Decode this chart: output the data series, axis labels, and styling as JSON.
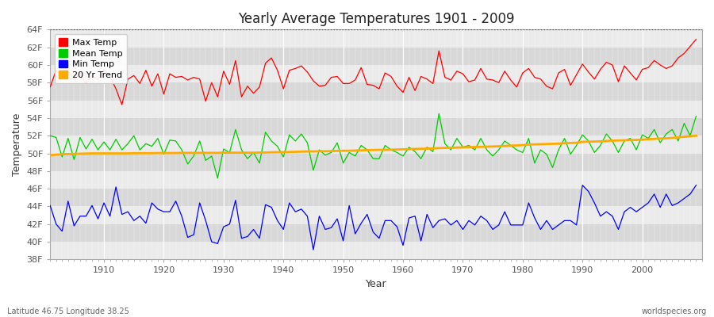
{
  "title": "Yearly Average Temperatures 1901 - 2009",
  "xlabel": "Year",
  "ylabel": "Temperature",
  "lat_lon_label": "Latitude 46.75 Longitude 38.25",
  "source_label": "worldspecies.org",
  "years": [
    1901,
    1902,
    1903,
    1904,
    1905,
    1906,
    1907,
    1908,
    1909,
    1910,
    1911,
    1912,
    1913,
    1914,
    1915,
    1916,
    1917,
    1918,
    1919,
    1920,
    1921,
    1922,
    1923,
    1924,
    1925,
    1926,
    1927,
    1928,
    1929,
    1930,
    1931,
    1932,
    1933,
    1934,
    1935,
    1936,
    1937,
    1938,
    1939,
    1940,
    1941,
    1942,
    1943,
    1944,
    1945,
    1946,
    1947,
    1948,
    1949,
    1950,
    1951,
    1952,
    1953,
    1954,
    1955,
    1956,
    1957,
    1958,
    1959,
    1960,
    1961,
    1962,
    1963,
    1964,
    1965,
    1966,
    1967,
    1968,
    1969,
    1970,
    1971,
    1972,
    1973,
    1974,
    1975,
    1976,
    1977,
    1978,
    1979,
    1980,
    1981,
    1982,
    1983,
    1984,
    1985,
    1986,
    1987,
    1988,
    1989,
    1990,
    1991,
    1992,
    1993,
    1994,
    1995,
    1996,
    1997,
    1998,
    1999,
    2000,
    2001,
    2002,
    2003,
    2004,
    2005,
    2006,
    2007,
    2008,
    2009
  ],
  "max_temp": [
    57.5,
    59.4,
    58.6,
    59.3,
    58.4,
    59.1,
    57.9,
    58.8,
    58.3,
    59.5,
    58.7,
    57.3,
    55.5,
    58.4,
    58.8,
    57.9,
    59.4,
    57.6,
    59.0,
    56.7,
    59.0,
    58.6,
    58.7,
    58.3,
    58.6,
    58.4,
    55.9,
    58.0,
    56.4,
    59.3,
    57.8,
    60.5,
    56.4,
    57.6,
    56.8,
    57.5,
    60.2,
    60.8,
    59.4,
    57.3,
    59.4,
    59.6,
    59.9,
    59.2,
    58.2,
    57.6,
    57.7,
    58.6,
    58.7,
    57.9,
    57.9,
    58.3,
    59.7,
    57.8,
    57.7,
    57.3,
    59.1,
    58.7,
    57.6,
    56.9,
    58.6,
    57.1,
    58.7,
    58.4,
    57.9,
    61.6,
    58.6,
    58.3,
    59.3,
    59.0,
    58.1,
    58.3,
    59.6,
    58.4,
    58.3,
    58.0,
    59.3,
    58.3,
    57.5,
    59.1,
    59.6,
    58.6,
    58.4,
    57.6,
    57.3,
    59.1,
    59.5,
    57.7,
    58.9,
    60.1,
    59.2,
    58.4,
    59.5,
    60.3,
    60.0,
    58.1,
    59.9,
    59.1,
    58.3,
    59.5,
    59.7,
    60.5,
    60.0,
    59.6,
    59.9,
    60.8,
    61.3,
    62.1,
    62.9
  ],
  "mean_temp": [
    52.0,
    51.8,
    49.6,
    51.7,
    49.3,
    51.8,
    50.5,
    51.6,
    50.4,
    51.3,
    50.4,
    51.6,
    50.4,
    51.1,
    52.0,
    50.4,
    51.1,
    50.8,
    51.7,
    49.9,
    51.5,
    51.4,
    50.4,
    48.8,
    49.7,
    51.4,
    49.2,
    49.7,
    47.2,
    50.5,
    50.1,
    52.7,
    50.4,
    49.4,
    50.1,
    48.9,
    52.4,
    51.4,
    50.8,
    49.6,
    52.1,
    51.4,
    52.2,
    51.2,
    48.1,
    50.4,
    49.8,
    50.1,
    51.2,
    48.9,
    50.1,
    49.7,
    50.9,
    50.4,
    49.4,
    49.4,
    50.9,
    50.4,
    50.1,
    49.7,
    50.7,
    50.2,
    49.4,
    50.7,
    50.2,
    54.5,
    51.1,
    50.4,
    51.7,
    50.7,
    50.9,
    50.4,
    51.7,
    50.4,
    49.7,
    50.4,
    51.4,
    50.9,
    50.4,
    50.1,
    51.7,
    48.9,
    50.4,
    49.9,
    48.4,
    50.4,
    51.7,
    49.9,
    50.9,
    52.1,
    51.4,
    50.1,
    50.9,
    52.2,
    51.4,
    50.1,
    51.4,
    51.7,
    50.4,
    52.1,
    51.7,
    52.7,
    51.2,
    52.2,
    52.7,
    51.4,
    53.4,
    52.0,
    54.2
  ],
  "min_temp": [
    44.1,
    42.0,
    41.2,
    44.6,
    41.8,
    42.9,
    42.9,
    44.1,
    42.6,
    44.4,
    42.9,
    46.2,
    43.1,
    43.4,
    42.4,
    42.9,
    42.1,
    44.4,
    43.7,
    43.4,
    43.4,
    44.6,
    42.9,
    40.5,
    40.8,
    44.4,
    42.4,
    40.0,
    39.8,
    41.7,
    42.0,
    44.7,
    40.4,
    40.6,
    41.4,
    40.4,
    44.2,
    43.9,
    42.4,
    41.4,
    44.4,
    43.4,
    43.7,
    42.9,
    39.1,
    42.9,
    41.4,
    41.6,
    42.6,
    40.1,
    44.1,
    40.9,
    42.1,
    43.1,
    41.1,
    40.4,
    42.4,
    42.4,
    41.7,
    39.6,
    42.7,
    42.9,
    40.1,
    43.1,
    41.6,
    42.4,
    42.6,
    41.9,
    42.4,
    41.4,
    42.4,
    41.9,
    42.9,
    42.4,
    41.4,
    41.9,
    43.4,
    41.9,
    41.9,
    41.9,
    44.4,
    42.7,
    41.4,
    42.4,
    41.4,
    41.9,
    42.4,
    42.4,
    41.9,
    46.4,
    45.7,
    44.4,
    42.9,
    43.4,
    42.9,
    41.4,
    43.4,
    43.9,
    43.4,
    43.9,
    44.4,
    45.4,
    43.9,
    45.4,
    44.1,
    44.4,
    44.9,
    45.4,
    46.4
  ],
  "trend": [
    49.8,
    49.85,
    49.9,
    49.92,
    49.94,
    49.96,
    49.98,
    50.0,
    50.0,
    50.0,
    50.0,
    50.0,
    50.0,
    50.0,
    50.02,
    50.02,
    50.02,
    50.02,
    50.04,
    50.04,
    50.04,
    50.04,
    50.06,
    50.06,
    50.06,
    50.06,
    50.06,
    50.06,
    50.06,
    50.08,
    50.08,
    50.08,
    50.08,
    50.08,
    50.08,
    50.1,
    50.1,
    50.12,
    50.14,
    50.14,
    50.16,
    50.18,
    50.2,
    50.22,
    50.22,
    50.24,
    50.24,
    50.26,
    50.28,
    50.3,
    50.3,
    50.32,
    50.34,
    50.36,
    50.38,
    50.4,
    50.4,
    50.42,
    50.44,
    50.46,
    50.48,
    50.5,
    50.52,
    50.54,
    50.56,
    50.6,
    50.62,
    50.64,
    50.66,
    50.68,
    50.7,
    50.72,
    50.74,
    50.76,
    50.78,
    50.8,
    50.84,
    50.88,
    50.9,
    50.94,
    51.0,
    51.02,
    51.04,
    51.06,
    51.08,
    51.1,
    51.14,
    51.18,
    51.2,
    51.3,
    51.32,
    51.34,
    51.36,
    51.4,
    51.44,
    51.46,
    51.48,
    51.5,
    51.52,
    51.56,
    51.6,
    51.64,
    51.68,
    51.7,
    51.75,
    51.82,
    51.88,
    51.94,
    52.0
  ],
  "ylim": [
    38,
    64
  ],
  "yticks": [
    38,
    40,
    42,
    44,
    46,
    48,
    50,
    52,
    54,
    56,
    58,
    60,
    62,
    64
  ],
  "ytick_labels": [
    "38F",
    "40F",
    "42F",
    "44F",
    "46F",
    "48F",
    "50F",
    "52F",
    "54F",
    "56F",
    "58F",
    "60F",
    "62F",
    "64F"
  ],
  "xlim": [
    1901,
    2010
  ],
  "xticks": [
    1910,
    1920,
    1930,
    1940,
    1950,
    1960,
    1970,
    1980,
    1990,
    2000
  ],
  "bg_color": "#ffffff",
  "plot_bg_color_light": "#f0f0f0",
  "plot_bg_color_dark": "#e0e0e0",
  "max_color": "#ff0000",
  "mean_color": "#00cc00",
  "min_color": "#0000ff",
  "trend_color": "#ffaa00",
  "dotted_line_y": 64,
  "legend_labels": [
    "Max Temp",
    "Mean Temp",
    "Min Temp",
    "20 Yr Trend"
  ],
  "legend_colors": [
    "#ff0000",
    "#00cc00",
    "#0000ff",
    "#ffaa00"
  ],
  "band_colors": [
    "#ebebeb",
    "#d8d8d8"
  ]
}
